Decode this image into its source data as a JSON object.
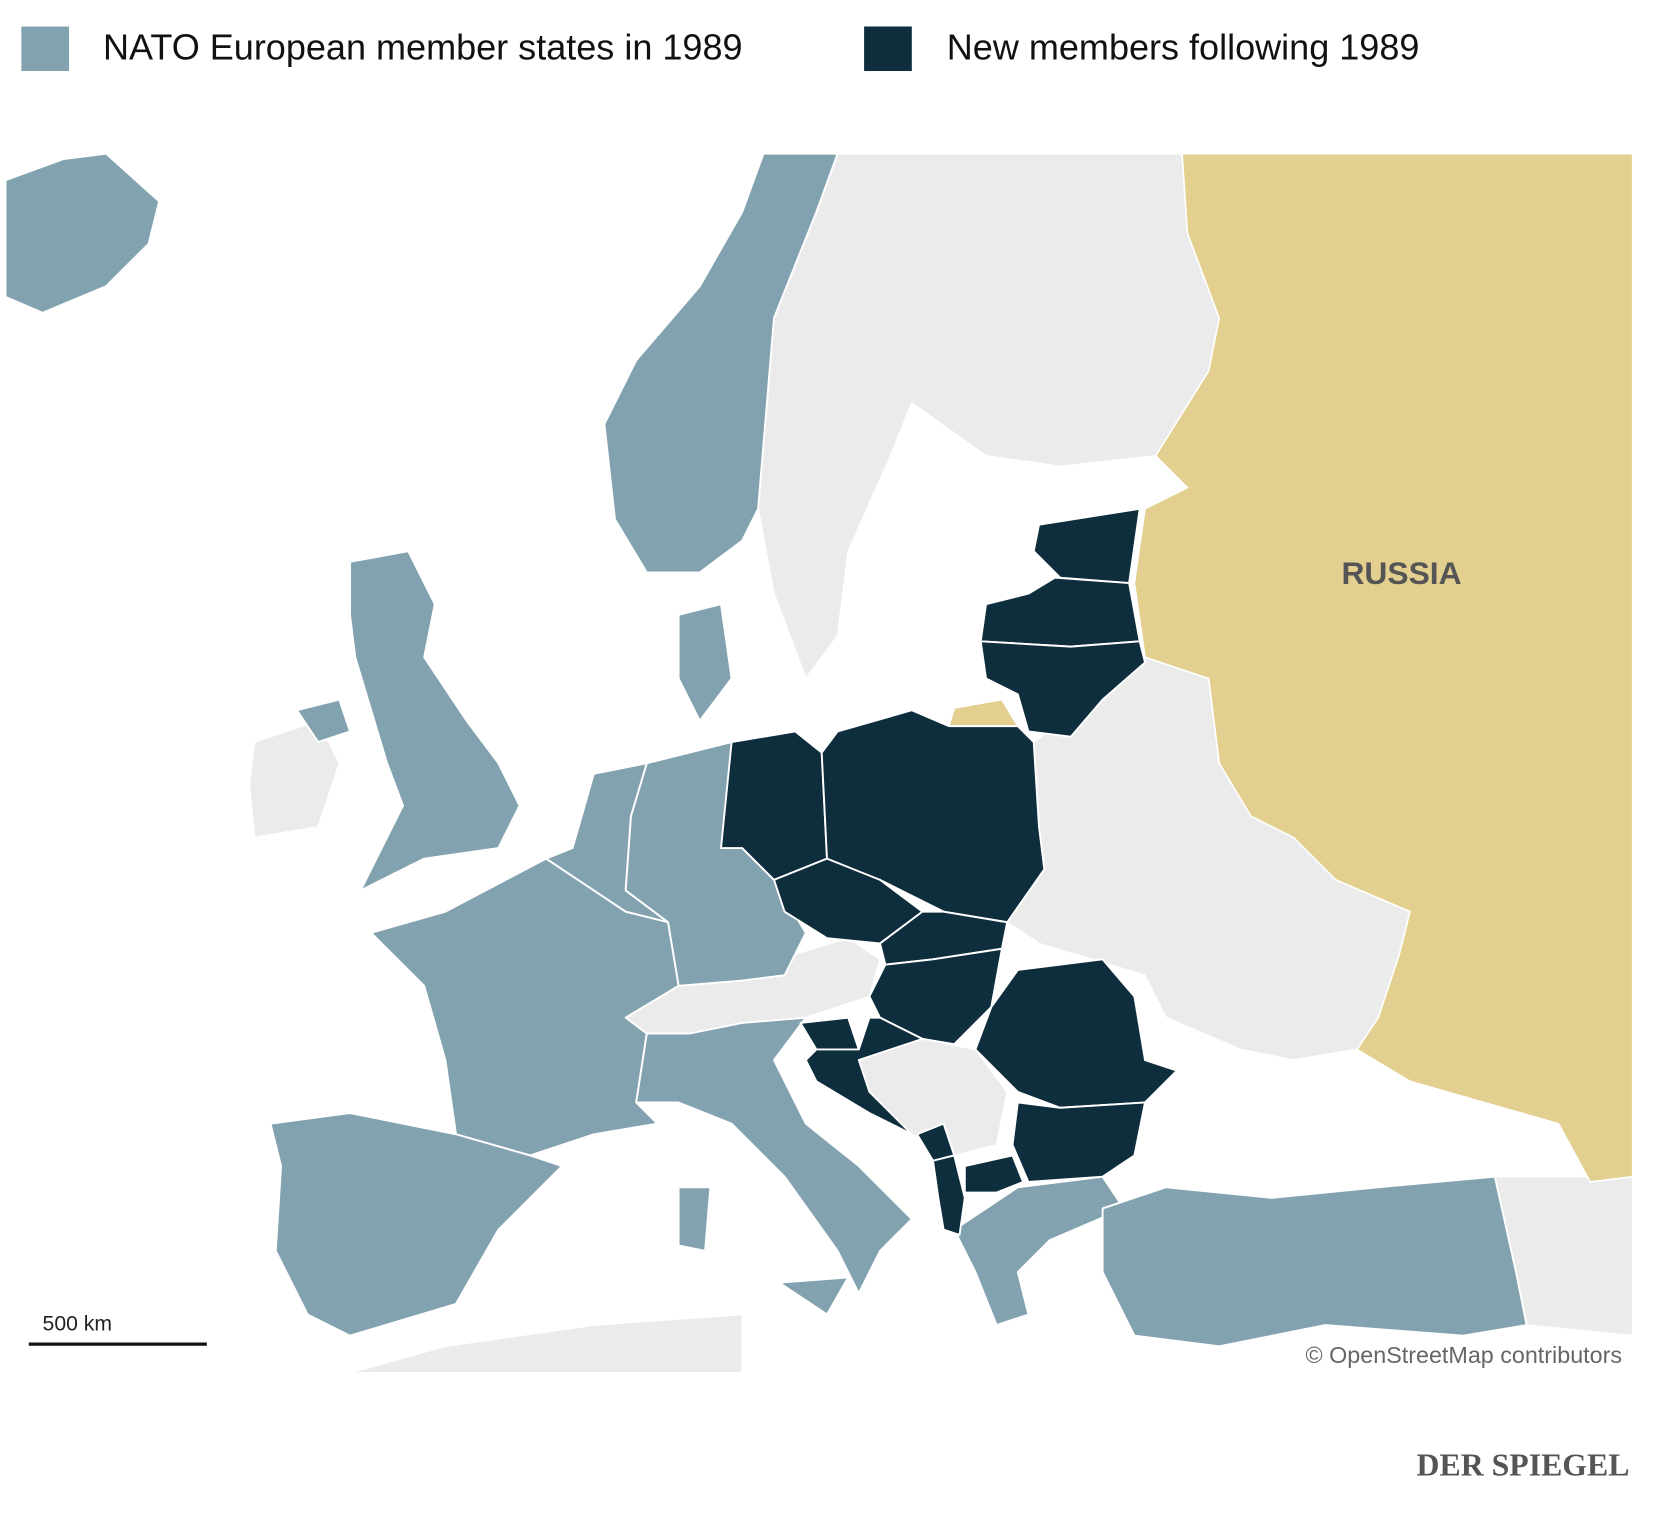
{
  "legend": [
    {
      "label": "NATO European member states in 1989",
      "color": "#83a2b0"
    },
    {
      "label": "New members following 1989",
      "color": "#0e2e3e"
    }
  ],
  "map": {
    "label": "RUSSIA",
    "scale": "500 km",
    "attribution": "© OpenStreetMap contributors"
  },
  "brand": "DER SPIEGEL"
}
